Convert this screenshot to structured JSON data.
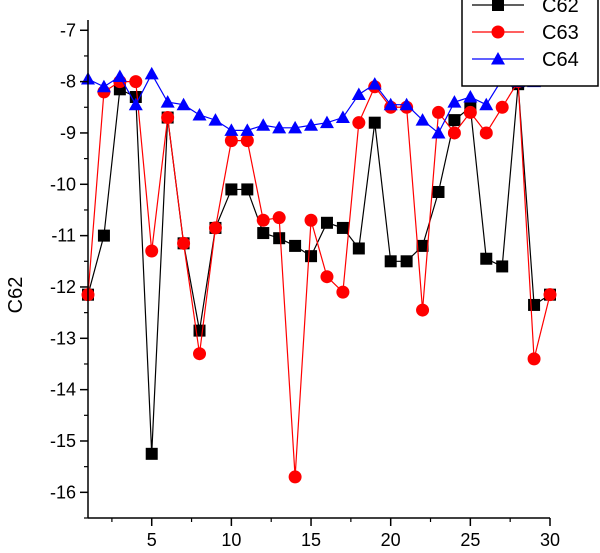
{
  "chart_data": {
    "type": "line",
    "title": "",
    "xlabel": "",
    "ylabel": "C62",
    "xlim": [
      1,
      30
    ],
    "ylim": [
      -16.5,
      -6.8
    ],
    "x_ticks": [
      5,
      10,
      15,
      20,
      25,
      30
    ],
    "y_ticks": [
      -7,
      -8,
      -9,
      -10,
      -11,
      -12,
      -13,
      -14,
      -15,
      -16
    ],
    "grid": false,
    "legend_position": "top-right",
    "x": [
      1,
      2,
      3,
      4,
      5,
      6,
      7,
      8,
      9,
      10,
      11,
      12,
      13,
      14,
      15,
      16,
      17,
      18,
      19,
      20,
      21,
      22,
      23,
      24,
      25,
      26,
      27,
      28,
      29,
      30
    ],
    "series": [
      {
        "name": "C62",
        "color": "#000000",
        "marker": "square",
        "values": [
          -12.15,
          -11.0,
          -8.15,
          -8.3,
          -15.25,
          -8.7,
          -11.15,
          -12.85,
          -10.85,
          -10.1,
          -10.1,
          -10.95,
          -11.05,
          -11.2,
          -11.4,
          -10.75,
          -10.85,
          -11.25,
          -8.8,
          -11.5,
          -11.5,
          -11.2,
          -10.15,
          -8.75,
          -8.5,
          -11.45,
          -11.6,
          -8.05,
          -12.35,
          -12.15
        ]
      },
      {
        "name": "C63",
        "color": "#ff0000",
        "marker": "circle",
        "values": [
          -12.15,
          -8.2,
          -8.0,
          -8.0,
          -11.3,
          -8.7,
          -11.15,
          -13.3,
          -10.85,
          -9.15,
          -9.15,
          -10.7,
          -10.65,
          -15.7,
          -10.7,
          -11.8,
          -12.1,
          -8.8,
          -8.1,
          -8.5,
          -8.5,
          -12.45,
          -8.6,
          -9.0,
          -8.6,
          -9.0,
          -8.5,
          -8.0,
          -13.4,
          -12.15
        ]
      },
      {
        "name": "C64",
        "color": "#0000ff",
        "marker": "triangle",
        "values": [
          -7.95,
          -8.1,
          -7.9,
          -8.45,
          -7.85,
          -8.4,
          -8.45,
          -8.65,
          -8.75,
          -8.95,
          -8.95,
          -8.85,
          -8.9,
          -8.9,
          -8.85,
          -8.8,
          -8.7,
          -8.25,
          -8.05,
          -8.45,
          -8.45,
          -8.75,
          -9.0,
          -8.4,
          -8.3,
          -8.45,
          -7.95,
          -8.0,
          -8.0,
          -7.95
        ]
      }
    ]
  }
}
